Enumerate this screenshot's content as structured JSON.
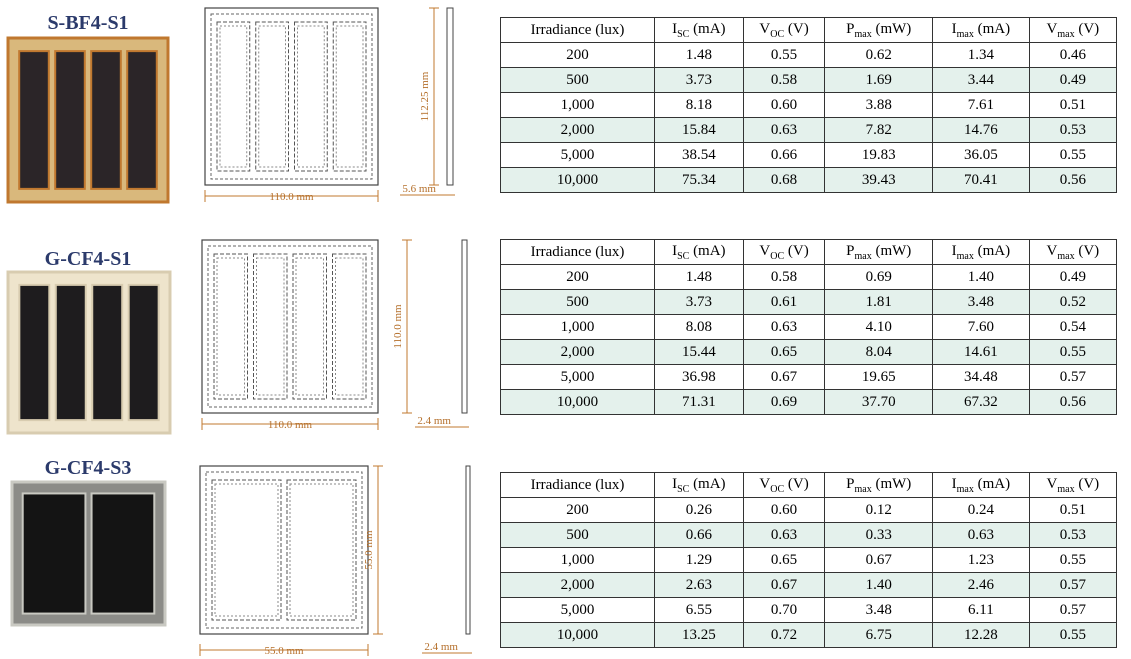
{
  "panels": [
    {
      "label": "S-BF4-S1",
      "width": "110.0 mm",
      "height": "112.25 mm",
      "thickness": "5.6 mm",
      "table": {
        "header": [
          "Irradiance (lux)",
          {
            "symbol": "I",
            "sub": "SC",
            "unit": "(mA)"
          },
          {
            "symbol": "V",
            "sub": "OC",
            "unit": "(V)"
          },
          {
            "symbol": "P",
            "sub": "max",
            "unit": "(mW)"
          },
          {
            "symbol": "I",
            "sub": "max",
            "unit": "(mA)"
          },
          {
            "symbol": "V",
            "sub": "max",
            "unit": "(V)"
          }
        ],
        "rows": [
          [
            "200",
            "1.48",
            "0.55",
            "0.62",
            "1.34",
            "0.46"
          ],
          [
            "500",
            "3.73",
            "0.58",
            "1.69",
            "3.44",
            "0.49"
          ],
          [
            "1,000",
            "8.18",
            "0.60",
            "3.88",
            "7.61",
            "0.51"
          ],
          [
            "2,000",
            "15.84",
            "0.63",
            "7.82",
            "14.76",
            "0.53"
          ],
          [
            "5,000",
            "38.54",
            "0.66",
            "19.83",
            "36.05",
            "0.55"
          ],
          [
            "10,000",
            "75.34",
            "0.68",
            "39.43",
            "70.41",
            "0.56"
          ]
        ]
      }
    },
    {
      "label": "G-CF4-S1",
      "width": "110.0 mm",
      "height": "110.0 mm",
      "thickness": "2.4 mm",
      "table": {
        "header": [
          "Irradiance (lux)",
          {
            "symbol": "I",
            "sub": "SC",
            "unit": "(mA)"
          },
          {
            "symbol": "V",
            "sub": "OC",
            "unit": "(V)"
          },
          {
            "symbol": "P",
            "sub": "max",
            "unit": "(mW)"
          },
          {
            "symbol": "I",
            "sub": "max",
            "unit": "(mA)"
          },
          {
            "symbol": "V",
            "sub": "max",
            "unit": "(V)"
          }
        ],
        "rows": [
          [
            "200",
            "1.48",
            "0.58",
            "0.69",
            "1.40",
            "0.49"
          ],
          [
            "500",
            "3.73",
            "0.61",
            "1.81",
            "3.48",
            "0.52"
          ],
          [
            "1,000",
            "8.08",
            "0.63",
            "4.10",
            "7.60",
            "0.54"
          ],
          [
            "2,000",
            "15.44",
            "0.65",
            "8.04",
            "14.61",
            "0.55"
          ],
          [
            "5,000",
            "36.98",
            "0.67",
            "19.65",
            "34.48",
            "0.57"
          ],
          [
            "10,000",
            "71.31",
            "0.69",
            "37.70",
            "67.32",
            "0.56"
          ]
        ]
      }
    },
    {
      "label": "G-CF4-S3",
      "width": "55.0 mm",
      "height": "55.0 mm",
      "thickness": "2.4 mm",
      "table": {
        "header": [
          "Irradiance (lux)",
          {
            "symbol": "I",
            "sub": "SC",
            "unit": "(mA)"
          },
          {
            "symbol": "V",
            "sub": "OC",
            "unit": "(V)"
          },
          {
            "symbol": "P",
            "sub": "max",
            "unit": "(mW)"
          },
          {
            "symbol": "I",
            "sub": "max",
            "unit": "(mA)"
          },
          {
            "symbol": "V",
            "sub": "max",
            "unit": "(V)"
          }
        ],
        "rows": [
          [
            "200",
            "0.26",
            "0.60",
            "0.12",
            "0.24",
            "0.51"
          ],
          [
            "500",
            "0.66",
            "0.63",
            "0.33",
            "0.63",
            "0.53"
          ],
          [
            "1,000",
            "1.29",
            "0.65",
            "0.67",
            "1.23",
            "0.55"
          ],
          [
            "2,000",
            "2.63",
            "0.67",
            "1.40",
            "2.46",
            "0.57"
          ],
          [
            "5,000",
            "6.55",
            "0.70",
            "3.48",
            "6.11",
            "0.57"
          ],
          [
            "10,000",
            "13.25",
            "0.72",
            "6.75",
            "12.28",
            "0.55"
          ]
        ]
      }
    }
  ]
}
